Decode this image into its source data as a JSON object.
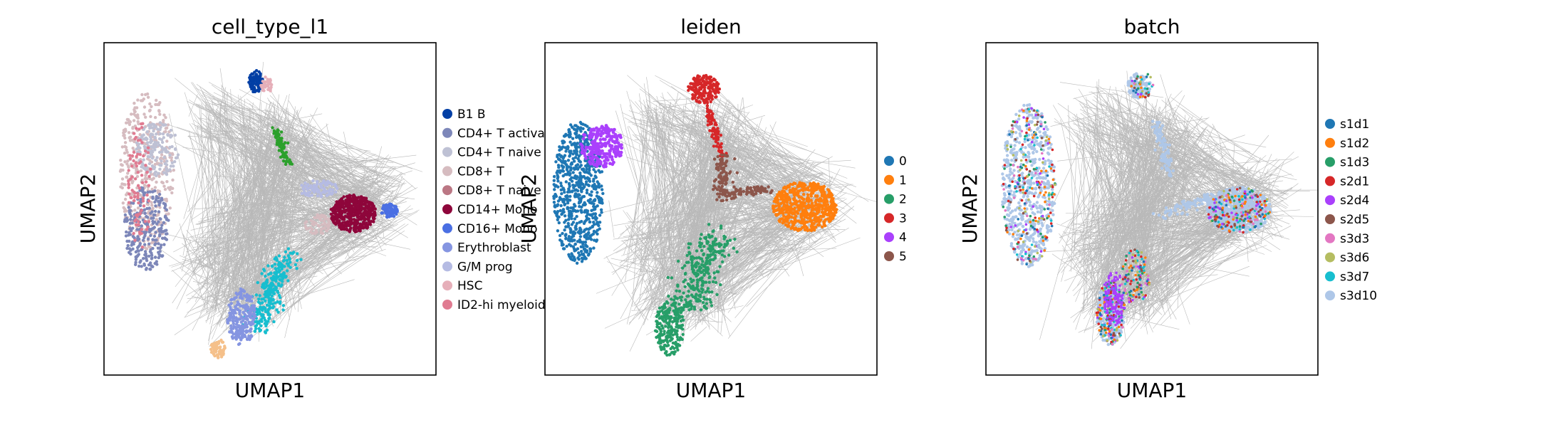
{
  "chart_data": [
    {
      "type": "scatter",
      "title": "cell_type_l1",
      "xlabel": "UMAP1",
      "ylabel": "UMAP2",
      "legend_position": "right",
      "legend": [
        {
          "name": "B1 B",
          "color": "#023fa5"
        },
        {
          "name": "CD4+ T activa",
          "color": "#7d87b9"
        },
        {
          "name": "CD4+ T naive",
          "color": "#bec1d4"
        },
        {
          "name": "CD8+ T",
          "color": "#d6bcc0"
        },
        {
          "name": "CD8+ T naive",
          "color": "#bb7784"
        },
        {
          "name": "CD14+ Mono",
          "color": "#8e063b"
        },
        {
          "name": "CD16+ Mono",
          "color": "#4a6fe3"
        },
        {
          "name": "Erythroblast",
          "color": "#8595e1"
        },
        {
          "name": "G/M prog",
          "color": "#b5bbe3"
        },
        {
          "name": "HSC",
          "color": "#e6afb9"
        },
        {
          "name": "ID2-hi myeloid",
          "color": "#e07b91"
        }
      ]
    },
    {
      "type": "scatter",
      "title": "leiden",
      "xlabel": "UMAP1",
      "ylabel": "UMAP2",
      "legend_position": "right",
      "legend": [
        {
          "name": "0",
          "color": "#1f77b4"
        },
        {
          "name": "1",
          "color": "#ff7f0e"
        },
        {
          "name": "2",
          "color": "#279e68"
        },
        {
          "name": "3",
          "color": "#d62728"
        },
        {
          "name": "4",
          "color": "#aa40fc"
        },
        {
          "name": "5",
          "color": "#8c564b"
        }
      ]
    },
    {
      "type": "scatter",
      "title": "batch",
      "xlabel": "UMAP1",
      "ylabel": "UMAP2",
      "legend_position": "right",
      "legend": [
        {
          "name": "s1d1",
          "color": "#1f77b4"
        },
        {
          "name": "s1d2",
          "color": "#ff7f0e"
        },
        {
          "name": "s1d3",
          "color": "#279e68"
        },
        {
          "name": "s2d1",
          "color": "#d62728"
        },
        {
          "name": "s2d4",
          "color": "#aa40fc"
        },
        {
          "name": "s2d5",
          "color": "#8c564b"
        },
        {
          "name": "s3d3",
          "color": "#e377c2"
        },
        {
          "name": "s3d6",
          "color": "#b5bd61"
        },
        {
          "name": "s3d7",
          "color": "#17becf"
        },
        {
          "name": "s3d10",
          "color": "#aec7e8"
        }
      ]
    }
  ],
  "edge_color": "#808080"
}
